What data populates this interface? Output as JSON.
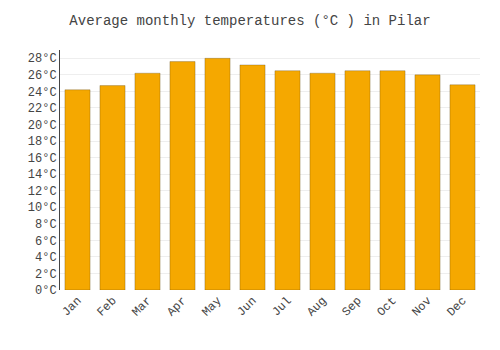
{
  "chart_data": {
    "type": "bar",
    "title": "Average monthly temperatures (°C ) in Pilar",
    "categories": [
      "Jan",
      "Feb",
      "Mar",
      "Apr",
      "May",
      "Jun",
      "Jul",
      "Aug",
      "Sep",
      "Oct",
      "Nov",
      "Dec"
    ],
    "values": [
      24.2,
      24.7,
      26.2,
      27.6,
      28.0,
      27.2,
      26.5,
      26.2,
      26.5,
      26.5,
      26.0,
      24.8
    ],
    "color": "#F5A800",
    "ylim": [
      0,
      29
    ],
    "yticks": [
      {
        "value": 0,
        "label": "0°C"
      },
      {
        "value": 2,
        "label": "2°C"
      },
      {
        "value": 4,
        "label": "4°C"
      },
      {
        "value": 6,
        "label": "6°C"
      },
      {
        "value": 8,
        "label": "8°C"
      },
      {
        "value": 10,
        "label": "10°C"
      },
      {
        "value": 12,
        "label": "12°C"
      },
      {
        "value": 14,
        "label": "14°C"
      },
      {
        "value": 16,
        "label": "16°C"
      },
      {
        "value": 18,
        "label": "18°C"
      },
      {
        "value": 20,
        "label": "20°C"
      },
      {
        "value": 22,
        "label": "22°C"
      },
      {
        "value": 24,
        "label": "24°C"
      },
      {
        "value": 26,
        "label": "26°C"
      },
      {
        "value": 28,
        "label": "28°C"
      }
    ],
    "grid": true
  }
}
